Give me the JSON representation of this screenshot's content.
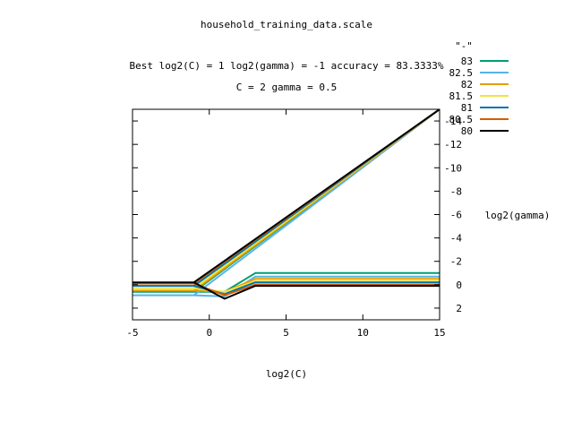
{
  "chart_data": {
    "type": "line",
    "title": "household_training_data.scale",
    "subtitle_lines": [
      "Best log2(C) = 1  log2(gamma) = -1  accuracy = 83.3333%",
      "C = 2  gamma = 0.5"
    ],
    "xlabel": "log2(C)",
    "ylabel": "log2(gamma)",
    "xlim": [
      -5,
      15
    ],
    "ylim": [
      3,
      -15
    ],
    "y_axis_reversed": true,
    "x_ticks": [
      -5,
      0,
      5,
      10,
      15
    ],
    "y_ticks": [
      2,
      0,
      -2,
      -4,
      -6,
      -8,
      -10,
      -12,
      -14
    ],
    "grid": false,
    "legend_placement": "top-right",
    "legend_title": "\"-\"",
    "series": [
      {
        "name": "83",
        "color": "#009e73",
        "segments": [
          {
            "x": [
              -5,
              -1,
              1,
              3,
              15
            ],
            "y": [
              0.6,
              0.6,
              0.6,
              -1,
              -1
            ]
          },
          {
            "x": [
              -1,
              15
            ],
            "y": [
              0.6,
              -15
            ]
          }
        ]
      },
      {
        "name": "82.5",
        "color": "#56b4e9",
        "segments": [
          {
            "x": [
              -5,
              -1,
              1,
              3,
              15
            ],
            "y": [
              0.9,
              0.9,
              1.0,
              -0.7,
              -0.7
            ]
          },
          {
            "x": [
              -1,
              15
            ],
            "y": [
              0.9,
              -15
            ]
          }
        ]
      },
      {
        "name": "82",
        "color": "#e69f00",
        "segments": [
          {
            "x": [
              -5,
              -1,
              1,
              3,
              15
            ],
            "y": [
              0.5,
              0.5,
              0.6,
              -0.5,
              -0.5
            ]
          },
          {
            "x": [
              -1,
              15
            ],
            "y": [
              0.5,
              -15
            ]
          }
        ]
      },
      {
        "name": "81.5",
        "color": "#f0e442",
        "segments": [
          {
            "x": [
              -5,
              -1,
              1,
              3,
              15
            ],
            "y": [
              0.3,
              0.3,
              0.6,
              -0.3,
              -0.3
            ]
          },
          {
            "x": [
              -1,
              15
            ],
            "y": [
              0.3,
              -15
            ]
          }
        ]
      },
      {
        "name": "81",
        "color": "#0072b2",
        "segments": [
          {
            "x": [
              -5,
              -1,
              1,
              3,
              15
            ],
            "y": [
              0.1,
              0.1,
              0.8,
              -0.2,
              -0.2
            ]
          },
          {
            "x": [
              -1,
              15
            ],
            "y": [
              0.1,
              -15
            ]
          }
        ]
      },
      {
        "name": "80.5",
        "color": "#d55e00",
        "segments": [
          {
            "x": [
              -5,
              -1,
              1,
              3,
              15
            ],
            "y": [
              -0.1,
              -0.1,
              0.9,
              0,
              0
            ]
          },
          {
            "x": [
              -1,
              15
            ],
            "y": [
              -0.1,
              -15
            ]
          }
        ]
      },
      {
        "name": "80",
        "color": "#000000",
        "segments": [
          {
            "x": [
              -5,
              -1,
              1,
              3,
              15
            ],
            "y": [
              -0.2,
              -0.2,
              1.2,
              0.1,
              0.1
            ]
          },
          {
            "x": [
              -1,
              15
            ],
            "y": [
              -0.2,
              -15
            ]
          }
        ]
      }
    ]
  }
}
